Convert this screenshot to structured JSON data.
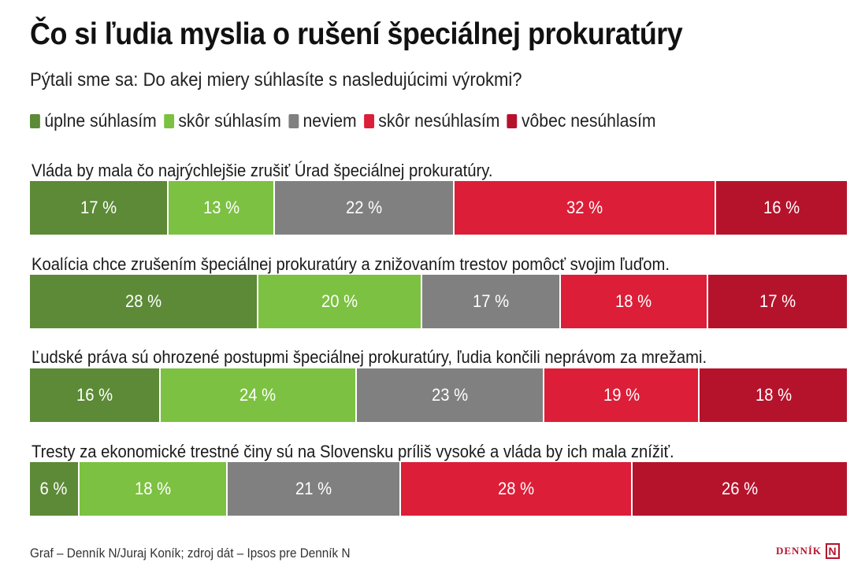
{
  "header": {
    "title": "Čo si ľudia myslia o rušení špeciálnej prokuratúry",
    "subtitle": "Pýtali sme sa: Do akej miery súhlasíte s nasledujúcimi výrokmi?"
  },
  "legend": [
    {
      "label": "úplne súhlasím",
      "color": "#5c8a37"
    },
    {
      "label": "skôr súhlasím",
      "color": "#7cc142"
    },
    {
      "label": "neviem",
      "color": "#808080"
    },
    {
      "label": "skôr nesúhlasím",
      "color": "#dc1e38"
    },
    {
      "label": "vôbec nesúhlasím",
      "color": "#b5132c"
    }
  ],
  "chart_data": {
    "type": "bar",
    "stacked": true,
    "orientation": "horizontal",
    "unit": "%",
    "categories": [
      "Vláda by mala čo najrýchlejšie zrušiť Úrad špeciálnej prokuratúry.",
      "Koalícia chce zrušením špeciálnej prokuratúry a znižovaním trestov pomôcť svojim ľuďom.",
      "Ľudské práva sú ohrozené postupmi špeciálnej prokuratúry, ľudia končili neprávom za mrežami.",
      "Tresty za ekonomické trestné činy sú na Slovensku príliš vysoké a vláda by ich mala znížiť."
    ],
    "series": [
      {
        "name": "úplne súhlasím",
        "values": [
          17,
          28,
          16,
          6
        ]
      },
      {
        "name": "skôr súhlasím",
        "values": [
          13,
          20,
          24,
          18
        ]
      },
      {
        "name": "neviem",
        "values": [
          22,
          17,
          23,
          21
        ]
      },
      {
        "name": "skôr nesúhlasím",
        "values": [
          32,
          18,
          19,
          28
        ]
      },
      {
        "name": "vôbec nesúhlasím",
        "values": [
          16,
          17,
          18,
          26
        ]
      }
    ],
    "labels": [
      [
        "17 %",
        "13 %",
        "22 %",
        "32 %",
        "16 %"
      ],
      [
        "28 %",
        "20 %",
        "17 %",
        "18 %",
        "17 %"
      ],
      [
        "16 %",
        "24 %",
        "23 %",
        "19 %",
        "18 %"
      ],
      [
        "6 %",
        "18 %",
        "21 %",
        "28 %",
        "26 %"
      ]
    ]
  },
  "footer": {
    "source": "Graf – Denník N/Juraj Koník; zdroj dát – Ipsos pre Denník N",
    "logo_text": "DENNÍK",
    "logo_mark": "N"
  }
}
